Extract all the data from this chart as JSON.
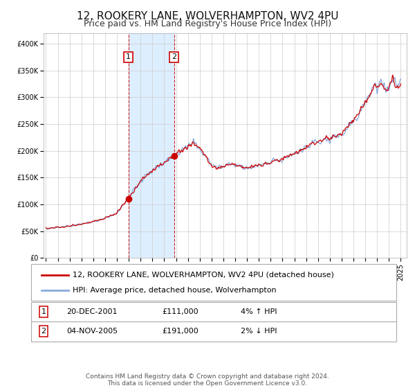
{
  "title": "12, ROOKERY LANE, WOLVERHAMPTON, WV2 4PU",
  "subtitle": "Price paid vs. HM Land Registry's House Price Index (HPI)",
  "ylim": [
    0,
    420000
  ],
  "yticks": [
    0,
    50000,
    100000,
    150000,
    200000,
    250000,
    300000,
    350000,
    400000
  ],
  "ytick_labels": [
    "£0",
    "£50K",
    "£100K",
    "£150K",
    "£200K",
    "£250K",
    "£300K",
    "£350K",
    "£400K"
  ],
  "sale1": {
    "date_num": 2001.97,
    "price": 111000,
    "label": "1",
    "annotation": "20-DEC-2001",
    "price_str": "£111,000",
    "hpi_rel": "4% ↑ HPI"
  },
  "sale2": {
    "date_num": 2005.84,
    "price": 191000,
    "label": "2",
    "annotation": "04-NOV-2005",
    "price_str": "£191,000",
    "hpi_rel": "2% ↓ HPI"
  },
  "legend_line1": "12, ROOKERY LANE, WOLVERHAMPTON, WV2 4PU (detached house)",
  "legend_line2": "HPI: Average price, detached house, Wolverhampton",
  "line_color": "#cc0000",
  "hpi_color": "#88aadd",
  "shade_color": "#ddeeff",
  "grid_color": "#cccccc",
  "bg_color": "#ffffff",
  "red_color": "#cc0000",
  "footnote1": "Contains HM Land Registry data © Crown copyright and database right 2024.",
  "footnote2": "This data is licensed under the Open Government Licence v3.0.",
  "title_fontsize": 11,
  "subtitle_fontsize": 9,
  "tick_fontsize": 7,
  "legend_fontsize": 8,
  "table_fontsize": 8,
  "footnote_fontsize": 6.5,
  "xlim_left": 1994.8,
  "xlim_right": 2025.5,
  "x_ticks": [
    1995,
    1996,
    1997,
    1998,
    1999,
    2000,
    2001,
    2002,
    2003,
    2004,
    2005,
    2006,
    2007,
    2008,
    2009,
    2010,
    2011,
    2012,
    2013,
    2014,
    2015,
    2016,
    2017,
    2018,
    2019,
    2020,
    2021,
    2022,
    2023,
    2024,
    2025
  ],
  "keypoints_x": [
    1995.0,
    1996.0,
    1997.0,
    1998.0,
    1999.0,
    2000.0,
    2001.0,
    2001.97,
    2002.5,
    2003.0,
    2003.5,
    2004.0,
    2004.5,
    2005.0,
    2005.84,
    2006.2,
    2006.5,
    2007.0,
    2007.5,
    2008.0,
    2008.5,
    2009.0,
    2009.5,
    2010.0,
    2010.5,
    2011.0,
    2011.5,
    2012.0,
    2012.5,
    2013.0,
    2013.5,
    2014.0,
    2014.5,
    2015.0,
    2015.5,
    2016.0,
    2016.5,
    2017.0,
    2017.5,
    2018.0,
    2018.5,
    2019.0,
    2019.5,
    2020.0,
    2020.5,
    2021.0,
    2021.5,
    2022.0,
    2022.5,
    2022.8,
    2023.0,
    2023.3,
    2023.5,
    2023.7,
    2024.0,
    2024.3,
    2024.5,
    2024.7,
    2025.0
  ],
  "keypoints_y": [
    55000,
    57000,
    59500,
    63000,
    68000,
    74000,
    84000,
    111000,
    128000,
    142000,
    154000,
    163000,
    170000,
    178000,
    191000,
    198000,
    200000,
    207000,
    215000,
    205000,
    188000,
    173000,
    168000,
    173000,
    176000,
    173000,
    170000,
    168000,
    170000,
    173000,
    176000,
    179000,
    182000,
    185000,
    189000,
    194000,
    199000,
    206000,
    212000,
    217000,
    220000,
    223000,
    227000,
    231000,
    244000,
    257000,
    271000,
    289000,
    309000,
    324000,
    317000,
    329000,
    321000,
    314000,
    319000,
    334000,
    329000,
    319000,
    328000
  ]
}
